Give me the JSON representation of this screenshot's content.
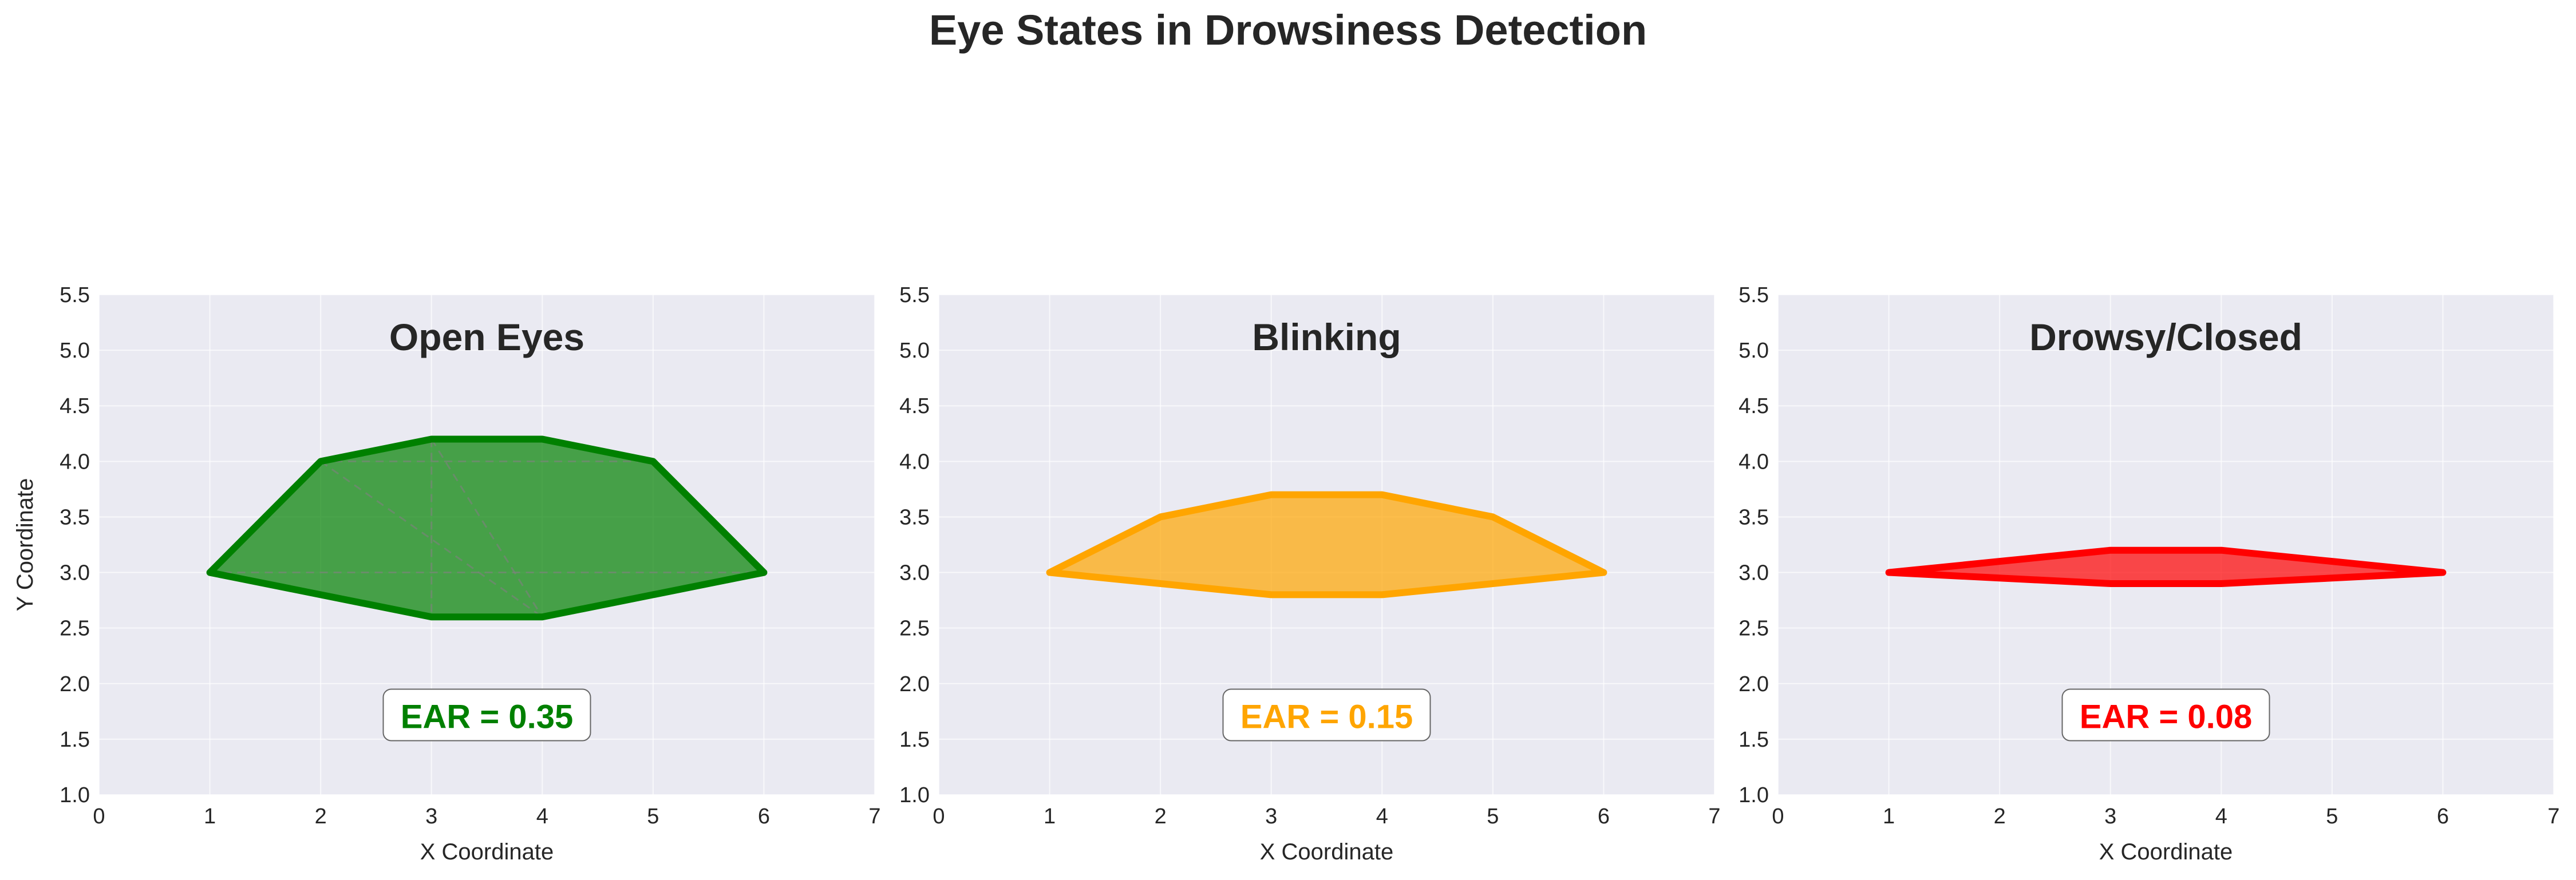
{
  "figure_title": "Eye States in Drowsiness Detection",
  "chart_data": [
    {
      "type": "area",
      "title": "Open Eyes",
      "xlabel": "X Coordinate",
      "ylabel": "Y Coordinate",
      "xlim": [
        0,
        7
      ],
      "ylim": [
        1.0,
        5.5
      ],
      "xticks": [
        "0",
        "1",
        "2",
        "3",
        "4",
        "5",
        "6",
        "7"
      ],
      "yticks": [
        "1.0",
        "1.5",
        "2.0",
        "2.5",
        "3.0",
        "3.5",
        "4.0",
        "4.5",
        "5.0",
        "5.5"
      ],
      "grid": true,
      "color": "#008000",
      "x": [
        1,
        2,
        3,
        4,
        5,
        6,
        4,
        3
      ],
      "y": [
        3.0,
        4.0,
        4.2,
        4.2,
        4.0,
        3.0,
        2.6,
        2.6
      ],
      "annotation": "EAR = 0.35",
      "annotation_pos": [
        3.5,
        1.6
      ]
    },
    {
      "type": "area",
      "title": "Blinking",
      "xlabel": "X Coordinate",
      "ylabel": "",
      "xlim": [
        0,
        7
      ],
      "ylim": [
        1.0,
        5.5
      ],
      "xticks": [
        "0",
        "1",
        "2",
        "3",
        "4",
        "5",
        "6",
        "7"
      ],
      "yticks": [
        "1.0",
        "1.5",
        "2.0",
        "2.5",
        "3.0",
        "3.5",
        "4.0",
        "4.5",
        "5.0",
        "5.5"
      ],
      "grid": true,
      "color": "#FFA500",
      "x": [
        1,
        2,
        3,
        4,
        5,
        6,
        4,
        3
      ],
      "y": [
        3.0,
        3.5,
        3.7,
        3.7,
        3.5,
        3.0,
        2.8,
        2.8
      ],
      "annotation": "EAR = 0.15",
      "annotation_pos": [
        3.5,
        1.6
      ]
    },
    {
      "type": "area",
      "title": "Drowsy/Closed",
      "xlabel": "X Coordinate",
      "ylabel": "",
      "xlim": [
        0,
        7
      ],
      "ylim": [
        1.0,
        5.5
      ],
      "xticks": [
        "0",
        "1",
        "2",
        "3",
        "4",
        "5",
        "6",
        "7"
      ],
      "yticks": [
        "1.0",
        "1.5",
        "2.0",
        "2.5",
        "3.0",
        "3.5",
        "4.0",
        "4.5",
        "5.0",
        "5.5"
      ],
      "grid": true,
      "color": "#FF0000",
      "x": [
        1,
        2,
        3,
        4,
        5,
        6,
        4,
        3
      ],
      "y": [
        3.0,
        3.1,
        3.2,
        3.2,
        3.1,
        3.0,
        2.9,
        2.9
      ],
      "annotation": "EAR = 0.08",
      "annotation_pos": [
        3.5,
        1.6
      ]
    }
  ]
}
